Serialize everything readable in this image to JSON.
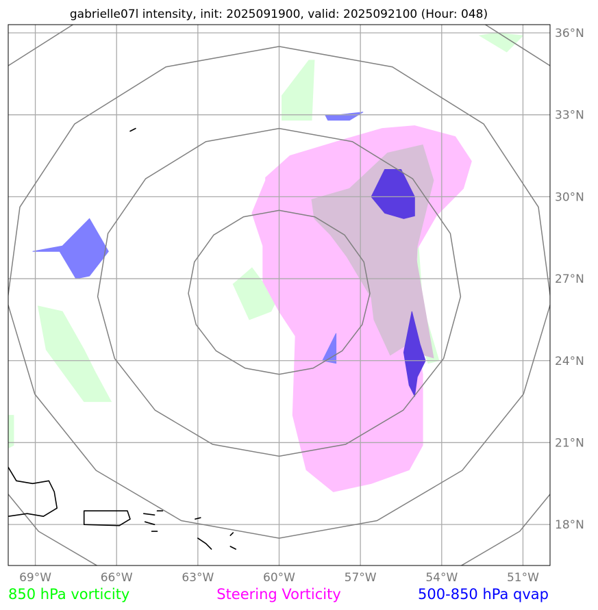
{
  "title": "gabrielle07l intensity, init: 2025091900, valid: 2025092100 (Hour: 048)",
  "map": {
    "lon_range": [
      -70,
      -50
    ],
    "lat_range": [
      16.5,
      36.3
    ],
    "lon_ticks": [
      {
        "value": -69,
        "label": "69°W"
      },
      {
        "value": -66,
        "label": "66°W"
      },
      {
        "value": -63,
        "label": "63°W"
      },
      {
        "value": -60,
        "label": "60°W"
      },
      {
        "value": -57,
        "label": "57°W"
      },
      {
        "value": -54,
        "label": "54°W"
      },
      {
        "value": -51,
        "label": "51°W"
      }
    ],
    "lat_ticks": [
      {
        "value": 36,
        "label": "36°N"
      },
      {
        "value": 33,
        "label": "33°N"
      },
      {
        "value": 30,
        "label": "30°N"
      },
      {
        "value": 27,
        "label": "27°N"
      },
      {
        "value": 24,
        "label": "24°N"
      },
      {
        "value": 21,
        "label": "21°N"
      },
      {
        "value": 18,
        "label": "18°N"
      }
    ],
    "grid": true,
    "storm_center": {
      "lon": -60.0,
      "lat": 26.5
    },
    "range_rings_deg": [
      3,
      6,
      9,
      12
    ]
  },
  "legend": {
    "vort850": {
      "label": "850 hPa vorticity",
      "color": "#00ff00"
    },
    "steering": {
      "label": "Steering Vorticity",
      "color": "#ff00ff"
    },
    "qvap": {
      "label": "500-850 hPa qvap",
      "color": "#0000ff"
    }
  },
  "colors": {
    "vort850_fill": "#d9ffd9",
    "steering_fill": "#ffbfff",
    "overlap_fill": "#d8bfd8",
    "qvap_fill": "#7f7fff",
    "qvap_dark_fill": "#5a3ce0"
  },
  "fields": {
    "vort850": [
      [
        [
          -58.9,
          35.0
        ],
        [
          -58.7,
          35.0
        ],
        [
          -58.8,
          32.8
        ],
        [
          -59.9,
          32.8
        ],
        [
          -59.9,
          33.7
        ]
      ],
      [
        [
          -61.7,
          26.8
        ],
        [
          -61.0,
          27.4
        ],
        [
          -60.1,
          26.2
        ],
        [
          -60.3,
          25.8
        ],
        [
          -61.1,
          25.5
        ]
      ],
      [
        [
          -68.9,
          26.0
        ],
        [
          -68.0,
          25.8
        ],
        [
          -67.2,
          24.4
        ],
        [
          -66.8,
          23.6
        ],
        [
          -66.2,
          22.5
        ],
        [
          -67.2,
          22.5
        ],
        [
          -68.6,
          24.4
        ]
      ],
      [
        [
          -55.0,
          30.2
        ],
        [
          -54.7,
          26.0
        ],
        [
          -54.1,
          24.0
        ],
        [
          -54.5,
          23.9
        ],
        [
          -55.0,
          25.5
        ]
      ],
      [
        [
          -51.0,
          35.9
        ],
        [
          -52.0,
          36.0
        ],
        [
          -52.6,
          35.9
        ],
        [
          -51.6,
          35.3
        ]
      ],
      [
        [
          -70.0,
          22.0
        ],
        [
          -69.8,
          22.0
        ],
        [
          -69.8,
          20.9
        ],
        [
          -70.0,
          20.8
        ]
      ]
    ],
    "steering": [
      [
        [
          -60.5,
          30.7
        ],
        [
          -59.6,
          31.5
        ],
        [
          -57.6,
          32.1
        ],
        [
          -56.2,
          32.5
        ],
        [
          -55.0,
          32.6
        ],
        [
          -53.5,
          32.2
        ],
        [
          -52.9,
          31.3
        ],
        [
          -53.2,
          30.3
        ],
        [
          -54.2,
          29.3
        ],
        [
          -54.9,
          28.1
        ],
        [
          -55.0,
          25.3
        ],
        [
          -54.7,
          23.5
        ],
        [
          -54.7,
          22.3
        ],
        [
          -54.7,
          20.9
        ],
        [
          -55.2,
          20.0
        ],
        [
          -56.6,
          19.5
        ],
        [
          -58.0,
          19.2
        ],
        [
          -59.0,
          20.0
        ],
        [
          -59.5,
          22.0
        ],
        [
          -59.4,
          24.9
        ],
        [
          -60.0,
          25.8
        ],
        [
          -60.6,
          26.9
        ],
        [
          -60.6,
          28.2
        ],
        [
          -61.0,
          29.4
        ],
        [
          -60.5,
          30.6
        ]
      ]
    ],
    "overlap": [
      [
        [
          -57.4,
          30.3
        ],
        [
          -56.0,
          31.6
        ],
        [
          -54.7,
          31.9
        ],
        [
          -54.3,
          30.6
        ],
        [
          -54.9,
          28.2
        ],
        [
          -55.1,
          24.7
        ],
        [
          -55.9,
          24.2
        ],
        [
          -56.5,
          25.5
        ],
        [
          -56.6,
          26.3
        ],
        [
          -57.5,
          27.8
        ],
        [
          -58.1,
          28.6
        ],
        [
          -58.7,
          29.2
        ],
        [
          -58.8,
          29.9
        ]
      ],
      [
        [
          -55.2,
          29.5
        ],
        [
          -54.9,
          27.5
        ],
        [
          -54.3,
          24.1
        ],
        [
          -55.0,
          24.3
        ]
      ]
    ],
    "qvap": [
      [
        [
          -58.3,
          33.0
        ],
        [
          -57.8,
          33.0
        ],
        [
          -56.9,
          33.1
        ],
        [
          -57.4,
          32.8
        ],
        [
          -58.2,
          32.8
        ]
      ],
      [
        [
          -69.1,
          28.0
        ],
        [
          -68.0,
          28.2
        ],
        [
          -67.0,
          29.2
        ],
        [
          -66.3,
          28.0
        ],
        [
          -67.0,
          27.1
        ],
        [
          -67.5,
          27.0
        ],
        [
          -68.1,
          28.0
        ]
      ],
      [
        [
          -57.9,
          25.0
        ],
        [
          -58.4,
          24.0
        ],
        [
          -57.9,
          23.9
        ]
      ]
    ],
    "qvap_dark": [
      [
        [
          -56.1,
          31.0
        ],
        [
          -55.5,
          31.0
        ],
        [
          -55.0,
          30.0
        ],
        [
          -55.0,
          29.3
        ],
        [
          -55.4,
          29.2
        ],
        [
          -56.1,
          29.4
        ],
        [
          -56.6,
          30.0
        ]
      ],
      [
        [
          -55.1,
          25.8
        ],
        [
          -55.4,
          24.3
        ],
        [
          -55.2,
          23.1
        ],
        [
          -55.0,
          22.7
        ],
        [
          -54.9,
          23.4
        ],
        [
          -54.6,
          24.0
        ],
        [
          -54.8,
          24.6
        ]
      ]
    ],
    "coastlines": [
      [
        [
          -70.0,
          20.1
        ],
        [
          -69.7,
          19.6
        ],
        [
          -69.1,
          19.5
        ],
        [
          -68.5,
          19.6
        ],
        [
          -68.3,
          19.2
        ],
        [
          -68.2,
          18.6
        ],
        [
          -68.7,
          18.3
        ],
        [
          -69.3,
          18.4
        ],
        [
          -70.0,
          18.3
        ]
      ],
      [
        [
          -67.2,
          18.5
        ],
        [
          -65.6,
          18.5
        ],
        [
          -65.5,
          18.2
        ],
        [
          -65.9,
          17.96
        ],
        [
          -67.2,
          18.0
        ],
        [
          -67.2,
          18.5
        ]
      ],
      [
        [
          -65.0,
          18.4
        ],
        [
          -64.6,
          18.35
        ]
      ],
      [
        [
          -64.95,
          18.1
        ],
        [
          -64.6,
          18.0
        ]
      ],
      [
        [
          -64.5,
          18.5
        ],
        [
          -64.3,
          18.5
        ]
      ],
      [
        [
          -64.7,
          17.75
        ],
        [
          -64.5,
          17.75
        ]
      ],
      [
        [
          -63.1,
          18.2
        ],
        [
          -62.9,
          18.25
        ]
      ],
      [
        [
          -63.0,
          17.5
        ],
        [
          -62.7,
          17.3
        ],
        [
          -62.5,
          17.1
        ]
      ],
      [
        [
          -61.8,
          17.6
        ],
        [
          -61.7,
          17.7
        ]
      ],
      [
        [
          -61.8,
          17.2
        ],
        [
          -61.6,
          17.1
        ]
      ],
      [
        [
          -61.5,
          16.4
        ],
        [
          -61.3,
          16.3
        ]
      ],
      [
        [
          -65.5,
          32.4
        ],
        [
          -65.3,
          32.5
        ]
      ]
    ]
  }
}
